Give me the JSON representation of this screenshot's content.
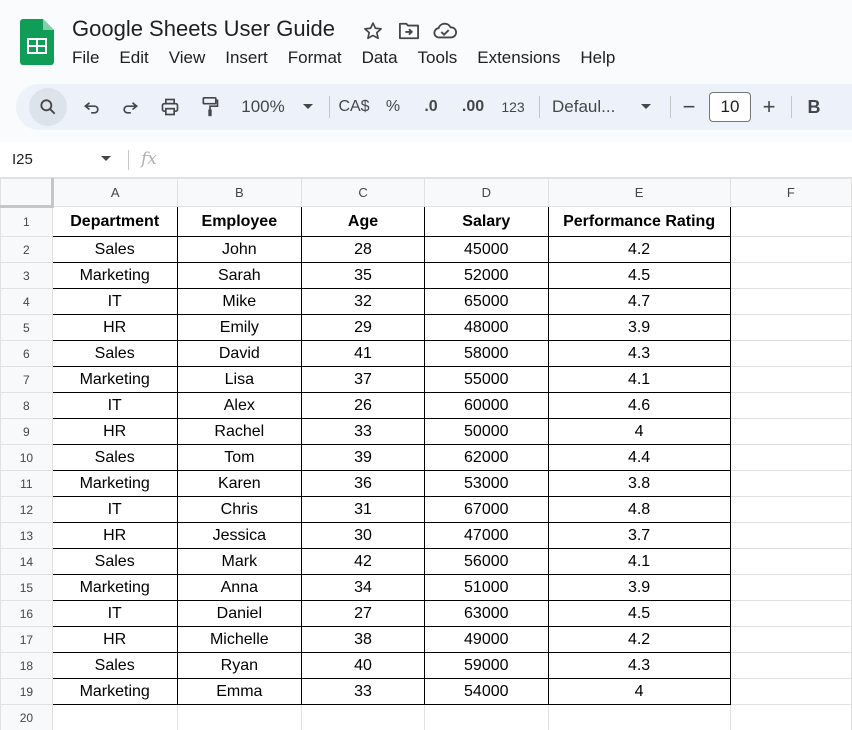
{
  "app": {
    "title": "Google Sheets User Guide",
    "title_icons": [
      "star-icon",
      "move-to-folder-icon",
      "cloud-saved-icon"
    ],
    "brand_color": "#0f9d58"
  },
  "menu": [
    "File",
    "Edit",
    "View",
    "Insert",
    "Format",
    "Data",
    "Tools",
    "Extensions",
    "Help"
  ],
  "toolbar": {
    "zoom": "100%",
    "currency": "CA$",
    "percent": "%",
    "decrease_decimal": ".0",
    "increase_decimal": ".00",
    "number_format": "123",
    "font": "Defaul...",
    "font_size": "10",
    "minus": "−",
    "plus": "+",
    "bold": "B",
    "icons": [
      "search-icon",
      "undo-icon",
      "redo-icon",
      "print-icon",
      "paint-format-icon",
      "chevron-down-icon"
    ]
  },
  "formula_bar": {
    "cell_ref": "I25",
    "fx": "fx"
  },
  "sheet": {
    "columns": [
      "A",
      "B",
      "C",
      "D",
      "E",
      "F"
    ],
    "row_numbers": [
      "1",
      "2",
      "3",
      "4",
      "5",
      "6",
      "7",
      "8",
      "9",
      "10",
      "11",
      "12",
      "13",
      "14",
      "15",
      "16",
      "17",
      "18",
      "19",
      "20"
    ],
    "headers": [
      "Department",
      "Employee",
      "Age",
      "Salary",
      "Performance Rating"
    ],
    "rows": [
      [
        "Sales",
        "John",
        "28",
        "45000",
        "4.2"
      ],
      [
        "Marketing",
        "Sarah",
        "35",
        "52000",
        "4.5"
      ],
      [
        "IT",
        "Mike",
        "32",
        "65000",
        "4.7"
      ],
      [
        "HR",
        "Emily",
        "29",
        "48000",
        "3.9"
      ],
      [
        "Sales",
        "David",
        "41",
        "58000",
        "4.3"
      ],
      [
        "Marketing",
        "Lisa",
        "37",
        "55000",
        "4.1"
      ],
      [
        "IT",
        "Alex",
        "26",
        "60000",
        "4.6"
      ],
      [
        "HR",
        "Rachel",
        "33",
        "50000",
        "4"
      ],
      [
        "Sales",
        "Tom",
        "39",
        "62000",
        "4.4"
      ],
      [
        "Marketing",
        "Karen",
        "36",
        "53000",
        "3.8"
      ],
      [
        "IT",
        "Chris",
        "31",
        "67000",
        "4.8"
      ],
      [
        "HR",
        "Jessica",
        "30",
        "47000",
        "3.7"
      ],
      [
        "Sales",
        "Mark",
        "42",
        "56000",
        "4.1"
      ],
      [
        "Marketing",
        "Anna",
        "34",
        "51000",
        "3.9"
      ],
      [
        "IT",
        "Daniel",
        "27",
        "63000",
        "4.5"
      ],
      [
        "HR",
        "Michelle",
        "38",
        "49000",
        "4.2"
      ],
      [
        "Sales",
        "Ryan",
        "40",
        "59000",
        "4.3"
      ],
      [
        "Marketing",
        "Emma",
        "33",
        "54000",
        "4"
      ]
    ]
  }
}
